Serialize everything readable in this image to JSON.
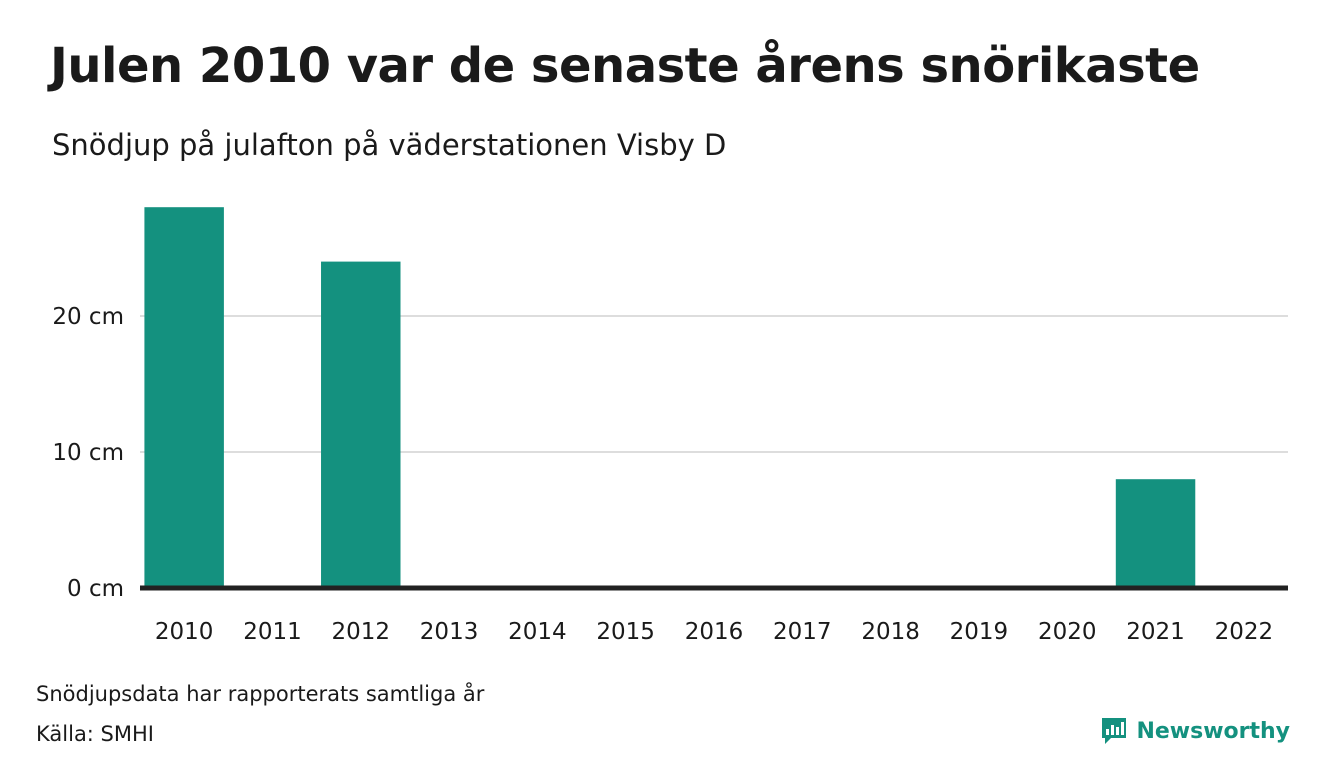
{
  "title": "Julen 2010 var de senaste årens snörikaste",
  "subtitle": "Snödjup på julafton på väderstationen Visby D",
  "note": "Snödjupsdata har rapporterats samtliga år",
  "source": "Källa: SMHI",
  "brand": "Newsworthy",
  "colors": {
    "bar": "#14917f",
    "grid": "#dddddd",
    "axis": "#222222",
    "brand": "#14917f"
  },
  "chart_data": {
    "type": "bar",
    "categories": [
      "2010",
      "2011",
      "2012",
      "2013",
      "2014",
      "2015",
      "2016",
      "2017",
      "2018",
      "2019",
      "2020",
      "2021",
      "2022"
    ],
    "values": [
      28,
      0,
      24,
      0,
      0,
      0,
      0,
      0,
      0,
      0,
      0,
      8,
      0
    ],
    "unit": "cm",
    "yticks": [
      0,
      10,
      20
    ],
    "ytick_labels": [
      "0 cm",
      "10 cm",
      "20 cm"
    ],
    "ylim": [
      0,
      30
    ],
    "grid": true
  }
}
